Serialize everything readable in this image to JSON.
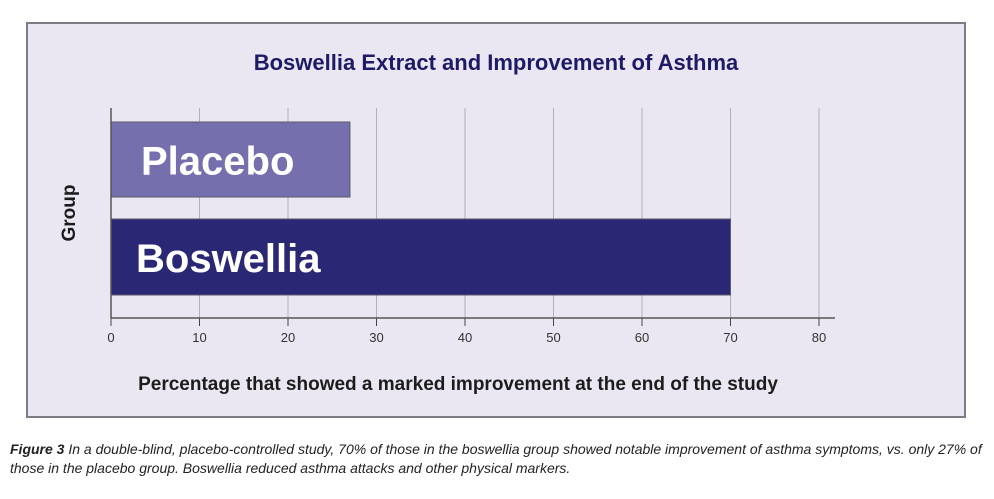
{
  "chart_data": {
    "type": "bar",
    "orientation": "horizontal",
    "title": "Boswellia Extract and Improvement of Asthma",
    "xlabel": "Percentage that showed a marked improvement at the end of the study",
    "ylabel": "Group",
    "xlim": [
      0,
      80
    ],
    "xticks": [
      0,
      10,
      20,
      30,
      40,
      50,
      60,
      70,
      80
    ],
    "categories": [
      "Placebo",
      "Boswellia"
    ],
    "values": [
      27,
      70
    ],
    "colors": [
      "#7570ad",
      "#2a2874"
    ],
    "grid": true
  },
  "caption": {
    "figure_label": "Figure 3",
    "text": "In a double-blind, placebo-controlled study, 70% of those in the boswellia group showed notable improvement of asthma symptoms, vs. only 27% of those in the placebo group. Boswellia reduced asthma attacks and other physical markers."
  }
}
